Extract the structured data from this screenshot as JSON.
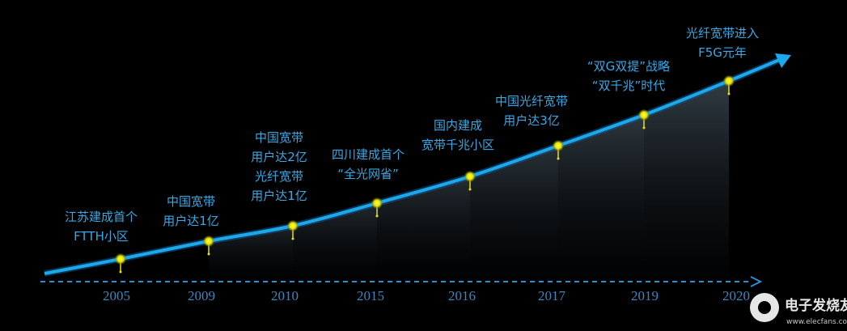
{
  "milestones": [
    {
      "year": "2005",
      "lines": [
        "江苏建成首个",
        "FTTH小区"
      ]
    },
    {
      "year": "2009",
      "lines": [
        "中国宽带",
        "用户达1亿"
      ]
    },
    {
      "year": "2010",
      "lines": [
        "中国宽带",
        "用户达2亿",
        "光纤宽带",
        "用户达1亿"
      ]
    },
    {
      "year": "2015",
      "lines": [
        "四川建成首个",
        "“全光网省”"
      ]
    },
    {
      "year": "2016",
      "lines": [
        "国内建成",
        "宽带千兆小区"
      ]
    },
    {
      "year": "2017",
      "lines": [
        "中国光纤宽带",
        "用户达3亿"
      ]
    },
    {
      "year": "2019",
      "lines": [
        "“双G双提”战略",
        "“双千兆”时代"
      ]
    },
    {
      "year": "2020",
      "lines": [
        "光纤宽带进入",
        "F5G元年"
      ]
    }
  ],
  "watermark": {
    "brand": "电子发烧友",
    "url": "www.elecfans.com"
  }
}
